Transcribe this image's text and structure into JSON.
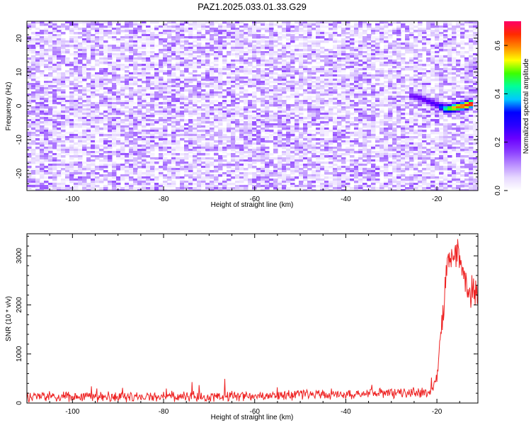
{
  "title": "PAZ1.2025.033.01.33.G29",
  "colors": {
    "snr_line": "#ee2222",
    "colormap": [
      "#ffffff",
      "#e6d8ff",
      "#b98cff",
      "#8a3cff",
      "#6a00ff",
      "#2a00ff",
      "#0000ff",
      "#00c8ff",
      "#00ff9a",
      "#3cff00",
      "#ffff00",
      "#ff8c00",
      "#ff2a00",
      "#ff0066"
    ]
  },
  "chart_data": [
    {
      "type": "heatmap",
      "xlabel": "Height of straight line (km)",
      "ylabel": "Frequency (Hz)",
      "xlim": [
        -110,
        -11
      ],
      "ylim": [
        -25,
        25
      ],
      "xticks": [
        -100,
        -80,
        -60,
        -40,
        -20
      ],
      "yticks": [
        -20,
        -10,
        0,
        10,
        20
      ],
      "xtick_labels": [
        "-100",
        "-80",
        "-60",
        "-40",
        "-20"
      ],
      "ytick_labels": [
        "-20",
        "-10",
        "0",
        "10",
        "20"
      ],
      "background_noise_amplitude": [
        0.0,
        0.15
      ],
      "signal_track": [
        {
          "x": -26,
          "freq": 3.0,
          "amplitude": 0.2
        },
        {
          "x": -24,
          "freq": 2.5,
          "amplitude": 0.22
        },
        {
          "x": -20,
          "freq": 0.3,
          "amplitude": 0.25
        },
        {
          "x": -18,
          "freq": -1.0,
          "amplitude": 0.45
        },
        {
          "x": -16,
          "freq": -0.5,
          "amplitude": 0.6
        },
        {
          "x": -14,
          "freq": 0.0,
          "amplitude": 0.65
        },
        {
          "x": -12,
          "freq": 0.8,
          "amplitude": 0.7
        }
      ],
      "colorbar": {
        "label": "Normalized spectral amplitude",
        "range": [
          0,
          0.7
        ],
        "ticks": [
          "0.0",
          "0.2",
          "0.4",
          "0.6"
        ],
        "tick_values": [
          0.0,
          0.2,
          0.4,
          0.6
        ]
      }
    },
    {
      "type": "line",
      "xlabel": "Height of straight line (km)",
      "ylabel": "SNR (10 * v/v)",
      "xlim": [
        -110,
        -11
      ],
      "ylim": [
        0,
        3450
      ],
      "xticks": [
        -100,
        -80,
        -60,
        -40,
        -20
      ],
      "yticks": [
        0,
        1000,
        2000,
        3000
      ],
      "xtick_labels": [
        "-100",
        "-80",
        "-60",
        "-40",
        "-20"
      ],
      "ytick_labels": [
        "0",
        "1000",
        "2000",
        "3000"
      ],
      "series": [
        {
          "x": [
            -110,
            -105,
            -100,
            -95,
            -90,
            -85,
            -80,
            -75,
            -70,
            -65,
            -60,
            -55,
            -50,
            -45,
            -40,
            -35,
            -30,
            -26,
            -24,
            -22,
            -21,
            -20,
            -19,
            -18,
            -17.5,
            -17,
            -16.5,
            -16,
            -15.5,
            -15,
            -14.5,
            -14,
            -13.5,
            -13,
            -12.5,
            -12,
            -11
          ],
          "y": [
            130,
            125,
            135,
            130,
            128,
            132,
            125,
            130,
            140,
            145,
            150,
            160,
            170,
            175,
            185,
            200,
            210,
            215,
            210,
            240,
            280,
            500,
            1500,
            2600,
            3000,
            2800,
            3100,
            2900,
            3200,
            2750,
            2900,
            2500,
            2300,
            2400,
            2250,
            2350,
            2300
          ],
          "noise_amplitude": 90
        }
      ]
    }
  ]
}
